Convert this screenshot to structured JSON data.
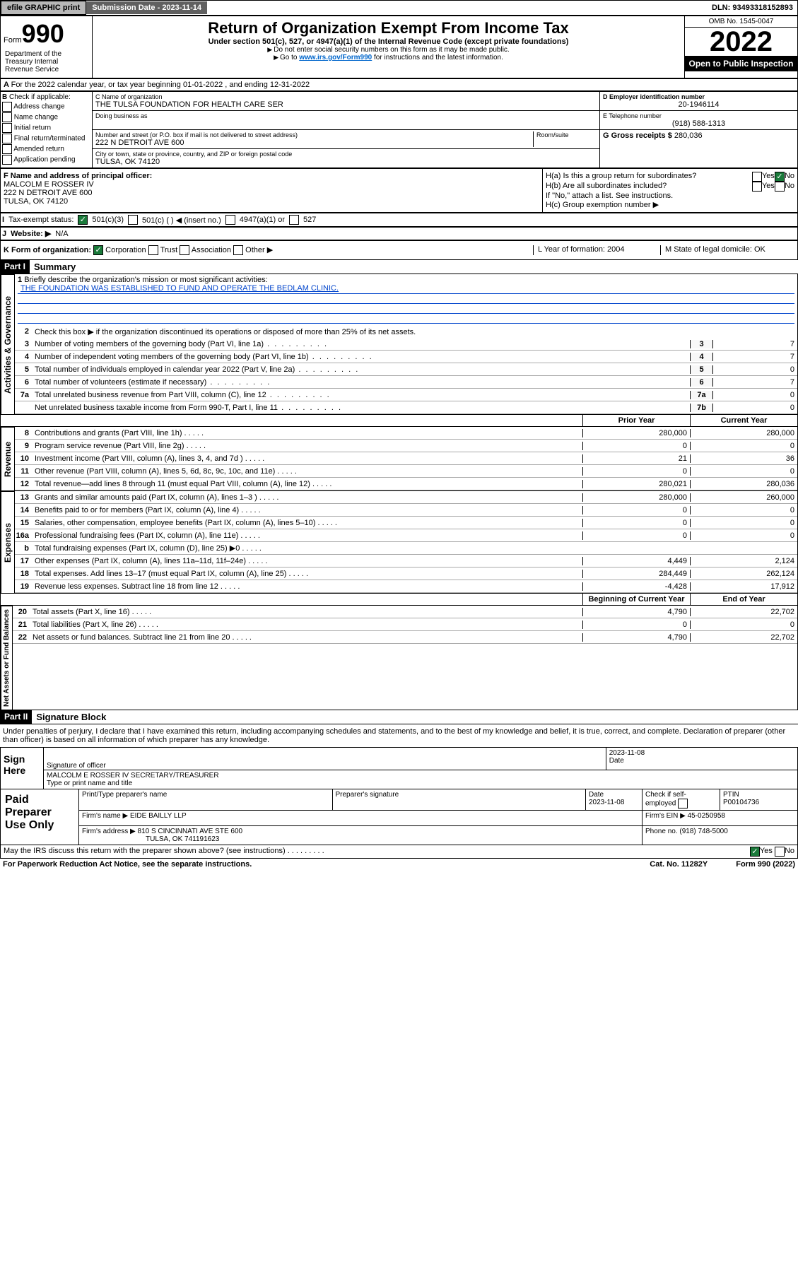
{
  "topbar": {
    "efile": "efile GRAPHIC print",
    "sub_label": "Submission Date - 2023-11-14",
    "dln_label": "DLN: 93493318152893"
  },
  "header": {
    "form_prefix": "Form",
    "form_no": "990",
    "title": "Return of Organization Exempt From Income Tax",
    "sub": "Under section 501(c), 527, or 4947(a)(1) of the Internal Revenue Code (except private foundations)",
    "note1": "Do not enter social security numbers on this form as it may be made public.",
    "note2_a": "Go to ",
    "note2_link": "www.irs.gov/Form990",
    "note2_b": " for instructions and the latest information.",
    "omb": "OMB No. 1545-0047",
    "year": "2022",
    "open": "Open to Public Inspection",
    "dept": "Department of the Treasury Internal Revenue Service"
  },
  "a": {
    "text": "For the 2022 calendar year, or tax year beginning 01-01-2022   , and ending 12-31-2022"
  },
  "b": {
    "label": "Check if applicable:",
    "opts": [
      "Address change",
      "Name change",
      "Initial return",
      "Final return/terminated",
      "Amended return",
      "Application pending"
    ]
  },
  "c": {
    "name_label": "C Name of organization",
    "name": "THE TULSA FOUNDATION FOR HEALTH CARE SER",
    "dba_label": "Doing business as",
    "street_label": "Number and street (or P.O. box if mail is not delivered to street address)",
    "room_label": "Room/suite",
    "street": "222 N DETROIT AVE 600",
    "city_label": "City or town, state or province, country, and ZIP or foreign postal code",
    "city": "TULSA, OK  74120"
  },
  "d": {
    "label": "D Employer identification number",
    "val": "20-1946114"
  },
  "e": {
    "label": "E Telephone number",
    "val": "(918) 588-1313"
  },
  "g": {
    "label": "G Gross receipts $",
    "val": "280,036"
  },
  "f": {
    "label": "F  Name and address of principal officer:",
    "name": "MALCOLM E ROSSER IV",
    "addr1": "222 N DETROIT AVE 600",
    "addr2": "TULSA, OK  74120"
  },
  "h": {
    "a": "H(a)  Is this a group return for subordinates?",
    "a_yes": "Yes",
    "a_no": "No",
    "b": "H(b)  Are all subordinates included?",
    "b_yes": "Yes",
    "b_no": "No",
    "b_note": "If \"No,\" attach a list. See instructions.",
    "c": "H(c)  Group exemption number ▶"
  },
  "i": {
    "label": "Tax-exempt status:",
    "o1": "501(c)(3)",
    "o2": "501(c) (  ) ◀ (insert no.)",
    "o3": "4947(a)(1) or",
    "o4": "527"
  },
  "j": {
    "label": "Website: ▶",
    "val": "N/A"
  },
  "k": {
    "label": "K Form of organization:",
    "o1": "Corporation",
    "o2": "Trust",
    "o3": "Association",
    "o4": "Other ▶"
  },
  "l": {
    "label": "L Year of formation: 2004"
  },
  "m": {
    "label": "M State of legal domicile: OK"
  },
  "part1": {
    "hdr": "Part I",
    "title": "Summary",
    "l1a": "Briefly describe the organization's mission or most significant activities:",
    "l1b": "THE FOUNDATION WAS ESTABLISHED TO FUND AND OPERATE THE BEDLAM CLINIC.",
    "l2": "Check this box ▶         if the organization discontinued its operations or disposed of more than 25% of its net assets.",
    "rows_single": [
      {
        "n": "3",
        "t": "Number of voting members of the governing body (Part VI, line 1a)",
        "r": "3",
        "v": "7"
      },
      {
        "n": "4",
        "t": "Number of independent voting members of the governing body (Part VI, line 1b)",
        "r": "4",
        "v": "7"
      },
      {
        "n": "5",
        "t": "Total number of individuals employed in calendar year 2022 (Part V, line 2a)",
        "r": "5",
        "v": "0"
      },
      {
        "n": "6",
        "t": "Total number of volunteers (estimate if necessary)",
        "r": "6",
        "v": "7"
      },
      {
        "n": "7a",
        "t": "Total unrelated business revenue from Part VIII, column (C), line 12",
        "r": "7a",
        "v": "0"
      },
      {
        "n": "",
        "t": "Net unrelated business taxable income from Form 990-T, Part I, line 11",
        "r": "7b",
        "v": "0"
      }
    ],
    "hdr_prior": "Prior Year",
    "hdr_curr": "Current Year",
    "revenue": [
      {
        "n": "8",
        "t": "Contributions and grants (Part VIII, line 1h)",
        "p": "280,000",
        "c": "280,000"
      },
      {
        "n": "9",
        "t": "Program service revenue (Part VIII, line 2g)",
        "p": "0",
        "c": "0"
      },
      {
        "n": "10",
        "t": "Investment income (Part VIII, column (A), lines 3, 4, and 7d )",
        "p": "21",
        "c": "36"
      },
      {
        "n": "11",
        "t": "Other revenue (Part VIII, column (A), lines 5, 6d, 8c, 9c, 10c, and 11e)",
        "p": "0",
        "c": "0"
      },
      {
        "n": "12",
        "t": "Total revenue—add lines 8 through 11 (must equal Part VIII, column (A), line 12)",
        "p": "280,021",
        "c": "280,036"
      }
    ],
    "expenses": [
      {
        "n": "13",
        "t": "Grants and similar amounts paid (Part IX, column (A), lines 1–3 )",
        "p": "280,000",
        "c": "260,000"
      },
      {
        "n": "14",
        "t": "Benefits paid to or for members (Part IX, column (A), line 4)",
        "p": "0",
        "c": "0"
      },
      {
        "n": "15",
        "t": "Salaries, other compensation, employee benefits (Part IX, column (A), lines 5–10)",
        "p": "0",
        "c": "0"
      },
      {
        "n": "16a",
        "t": "Professional fundraising fees (Part IX, column (A), line 11e)",
        "p": "0",
        "c": "0"
      },
      {
        "n": "b",
        "t": "Total fundraising expenses (Part IX, column (D), line 25) ▶0",
        "p": "",
        "c": "",
        "shade": true
      },
      {
        "n": "17",
        "t": "Other expenses (Part IX, column (A), lines 11a–11d, 11f–24e)",
        "p": "4,449",
        "c": "2,124"
      },
      {
        "n": "18",
        "t": "Total expenses. Add lines 13–17 (must equal Part IX, column (A), line 25)",
        "p": "284,449",
        "c": "262,124"
      },
      {
        "n": "19",
        "t": "Revenue less expenses. Subtract line 18 from line 12",
        "p": "-4,428",
        "c": "17,912"
      }
    ],
    "hdr_boy": "Beginning of Current Year",
    "hdr_eoy": "End of Year",
    "netassets": [
      {
        "n": "20",
        "t": "Total assets (Part X, line 16)",
        "p": "4,790",
        "c": "22,702"
      },
      {
        "n": "21",
        "t": "Total liabilities (Part X, line 26)",
        "p": "0",
        "c": "0"
      },
      {
        "n": "22",
        "t": "Net assets or fund balances. Subtract line 21 from line 20",
        "p": "4,790",
        "c": "22,702"
      }
    ],
    "vtabs": {
      "ag": "Activities & Governance",
      "rev": "Revenue",
      "exp": "Expenses",
      "na": "Net Assets or Fund Balances"
    }
  },
  "part2": {
    "hdr": "Part II",
    "title": "Signature Block",
    "decl": "Under penalties of perjury, I declare that I have examined this return, including accompanying schedules and statements, and to the best of my knowledge and belief, it is true, correct, and complete. Declaration of preparer (other than officer) is based on all information of which preparer has any knowledge."
  },
  "sign": {
    "here": "Sign Here",
    "sig_label": "Signature of officer",
    "date_label": "Date",
    "date": "2023-11-08",
    "name": "MALCOLM E ROSSER IV  SECRETARY/TREASURER",
    "name_label": "Type or print name and title"
  },
  "prep": {
    "label": "Paid Preparer Use Only",
    "r1": {
      "c1": "Print/Type preparer's name",
      "c2": "Preparer's signature",
      "c3": "Date",
      "c3v": "2023-11-08",
      "c4": "Check         if self-employed",
      "c5": "PTIN",
      "c5v": "P00104736"
    },
    "r2": {
      "l": "Firm's name    ▶",
      "v": "EIDE BAILLY LLP",
      "r": "Firm's EIN ▶ 45-0250958"
    },
    "r3": {
      "l": "Firm's address ▶",
      "v1": "810 S CINCINNATI AVE STE 600",
      "v2": "TULSA, OK  741191623",
      "r": "Phone no. (918) 748-5000"
    }
  },
  "footer": {
    "q": "May the IRS discuss this return with the preparer shown above? (see instructions)",
    "yes": "Yes",
    "no": "No",
    "pra": "For Paperwork Reduction Act Notice, see the separate instructions.",
    "cat": "Cat. No. 11282Y",
    "form": "Form 990 (2022)"
  }
}
